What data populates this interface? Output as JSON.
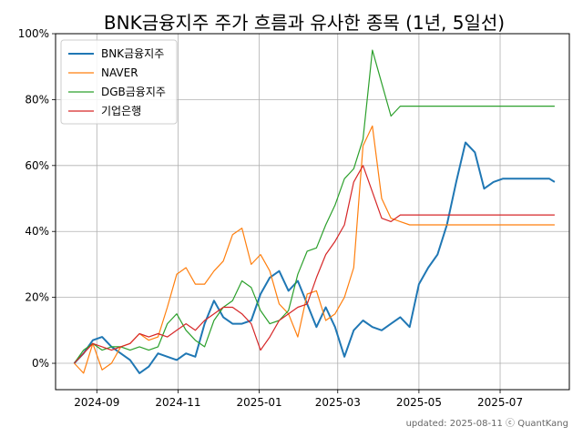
{
  "chart_data": {
    "type": "line",
    "title": "BNK금융지주 주가 흐름과 유사한 종목 (1년, 5일선)",
    "xlabel": "",
    "ylabel": "",
    "x_ticks": [
      "2024-09",
      "2024-11",
      "2025-01",
      "2025-03",
      "2025-05",
      "2025-07"
    ],
    "y_ticks": [
      "0%",
      "20%",
      "40%",
      "60%",
      "80%",
      "100%"
    ],
    "ylim": [
      -8,
      100
    ],
    "grid": true,
    "legend_position": "top-left",
    "x": [
      "2024-08-15",
      "2024-08-22",
      "2024-08-29",
      "2024-09-05",
      "2024-09-12",
      "2024-09-19",
      "2024-09-26",
      "2024-10-03",
      "2024-10-10",
      "2024-10-17",
      "2024-10-24",
      "2024-10-31",
      "2024-11-07",
      "2024-11-14",
      "2024-11-21",
      "2024-11-28",
      "2024-12-05",
      "2024-12-12",
      "2024-12-19",
      "2024-12-26",
      "2025-01-02",
      "2025-01-09",
      "2025-01-16",
      "2025-01-23",
      "2025-01-30",
      "2025-02-06",
      "2025-02-13",
      "2025-02-20",
      "2025-02-27",
      "2025-03-06",
      "2025-03-13",
      "2025-03-20",
      "2025-03-27",
      "2025-04-03",
      "2025-04-10",
      "2025-04-17",
      "2025-04-24",
      "2025-05-01",
      "2025-05-08",
      "2025-05-15",
      "2025-05-22",
      "2025-05-29",
      "2025-06-05",
      "2025-06-12",
      "2025-06-19",
      "2025-06-26",
      "2025-07-03",
      "2025-07-10",
      "2025-07-17",
      "2025-07-24",
      "2025-07-31",
      "2025-08-07",
      "2025-08-11"
    ],
    "series": [
      {
        "name": "BNK금융지주",
        "color": "#1f77b4",
        "width": 2,
        "values": [
          0,
          3,
          7,
          8,
          5,
          3,
          1,
          -3,
          -1,
          3,
          2,
          1,
          3,
          2,
          12,
          19,
          14,
          12,
          12,
          13,
          21,
          26,
          28,
          22,
          25,
          18,
          11,
          17,
          11,
          2,
          10,
          13,
          11,
          10,
          12,
          14,
          11,
          24,
          29,
          33,
          42,
          55,
          67,
          64,
          53,
          55,
          56,
          56,
          56,
          56,
          56,
          56,
          55
        ]
      },
      {
        "name": "NAVER",
        "color": "#ff7f0e",
        "width": 1.2,
        "values": [
          0,
          -3,
          6,
          -2,
          0,
          5,
          6,
          9,
          7,
          8,
          17,
          27,
          29,
          24,
          24,
          28,
          31,
          39,
          41,
          30,
          33,
          28,
          18,
          15,
          8,
          21,
          22,
          13,
          15,
          20,
          29,
          66,
          72,
          50,
          44,
          43,
          42,
          42,
          42,
          42,
          42,
          42,
          42,
          42,
          42,
          42,
          42,
          42,
          42,
          42,
          42,
          42,
          42
        ]
      },
      {
        "name": "DGB금융지주",
        "color": "#2ca02c",
        "width": 1.2,
        "values": [
          0,
          4,
          6,
          4,
          5,
          5,
          4,
          5,
          4,
          5,
          12,
          15,
          10,
          7,
          5,
          13,
          17,
          19,
          25,
          23,
          16,
          12,
          13,
          16,
          27,
          34,
          35,
          42,
          48,
          56,
          59,
          68,
          95,
          85,
          75,
          78,
          78,
          78,
          78,
          78,
          78,
          78,
          78,
          78,
          78,
          78,
          78,
          78,
          78,
          78,
          78,
          78,
          78
        ]
      },
      {
        "name": "기업은행",
        "color": "#d62728",
        "width": 1.2,
        "values": [
          0,
          3,
          6,
          5,
          4,
          5,
          6,
          9,
          8,
          9,
          8,
          10,
          12,
          10,
          13,
          15,
          17,
          17,
          15,
          12,
          4,
          8,
          13,
          15,
          17,
          18,
          26,
          33,
          37,
          42,
          55,
          60,
          52,
          44,
          43,
          45,
          45,
          45,
          45,
          45,
          45,
          45,
          45,
          45,
          45,
          45,
          45,
          45,
          45,
          45,
          45,
          45,
          45
        ]
      }
    ]
  },
  "footer": "updated: 2025-08-11 ⓒ QuantKang"
}
